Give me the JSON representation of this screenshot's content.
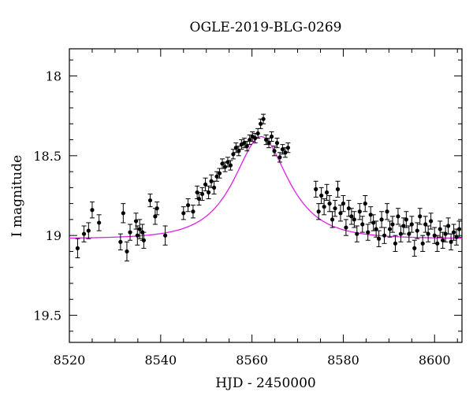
{
  "chart_data": {
    "type": "scatter",
    "title": "OGLE-2019-BLG-0269",
    "xlabel": "HJD - 2450000",
    "ylabel": "I magnitude",
    "xlim": [
      8520,
      8606
    ],
    "ylim": [
      19.67,
      17.83
    ],
    "y_axis_inverted": true,
    "x_ticks": [
      8520,
      8540,
      8560,
      8580,
      8600
    ],
    "x_tick_labels": [
      "8520",
      "8540",
      "8560",
      "8580",
      "8600"
    ],
    "y_ticks": [
      18,
      18.5,
      19,
      19.5
    ],
    "y_tick_labels": [
      "18",
      "18.5",
      "19",
      "19.5"
    ],
    "grid": false,
    "colors": {
      "points": "#000000",
      "model": "#e020e0",
      "frame": "#000000"
    },
    "model": {
      "name": "",
      "type": "microlensing",
      "t0": 8562.0,
      "baseline_mag": 19.02,
      "peak_mag": 18.38,
      "tE": 9.0
    },
    "series": [
      {
        "type": "errorbar-scatter",
        "x": [
          8521.8,
          8523.2,
          8524.2,
          8525.0,
          8526.5,
          8531.2,
          8531.8,
          8532.6,
          8533.3,
          8534.6,
          8534.9,
          8535.4,
          8536.0,
          8536.3,
          8537.7,
          8538.8,
          8539.2,
          8541.0,
          8545.0,
          8546.0,
          8547.1,
          8548.0,
          8548.4,
          8549.1,
          8549.8,
          8550.5,
          8551.1,
          8551.7,
          8552.3,
          8552.9,
          8553.5,
          8554.1,
          8554.7,
          8555.3,
          8555.9,
          8556.5,
          8557.1,
          8557.7,
          8558.3,
          8558.9,
          8559.5,
          8560.1,
          8560.7,
          8561.3,
          8561.9,
          8562.5,
          8563.1,
          8563.7,
          8564.3,
          8564.9,
          8565.5,
          8566.1,
          8566.7,
          8567.3,
          8567.9,
          8574.0,
          8574.6,
          8575.2,
          8575.8,
          8576.4,
          8577.0,
          8577.6,
          8578.2,
          8578.8,
          8579.4,
          8580.0,
          8580.6,
          8581.2,
          8581.8,
          8582.4,
          8583.0,
          8583.6,
          8584.2,
          8584.8,
          8585.4,
          8586.0,
          8586.6,
          8587.2,
          8587.8,
          8588.4,
          8589.0,
          8589.6,
          8590.2,
          8590.8,
          8591.4,
          8592.0,
          8592.6,
          8593.2,
          8593.8,
          8594.4,
          8595.0,
          8595.6,
          8596.2,
          8596.8,
          8597.4,
          8598.0,
          8598.6,
          8599.2,
          8600.0,
          8600.6,
          8601.2,
          8601.8,
          8602.4,
          8603.0,
          8603.6,
          8604.2,
          8604.8,
          8605.4
        ],
        "y": [
          19.08,
          18.99,
          18.97,
          18.84,
          18.92,
          19.04,
          18.86,
          19.1,
          18.98,
          18.91,
          19.0,
          18.96,
          18.98,
          19.03,
          18.78,
          18.88,
          18.83,
          19.0,
          18.86,
          18.81,
          18.85,
          18.73,
          18.77,
          18.74,
          18.68,
          18.73,
          18.66,
          18.7,
          18.63,
          18.61,
          18.55,
          18.57,
          18.54,
          18.56,
          18.49,
          18.45,
          18.47,
          18.43,
          18.42,
          18.44,
          18.4,
          18.38,
          18.39,
          18.36,
          18.3,
          18.27,
          18.4,
          18.42,
          18.38,
          18.47,
          18.42,
          18.51,
          18.46,
          18.48,
          18.45,
          18.71,
          18.85,
          18.75,
          18.82,
          18.73,
          18.8,
          18.9,
          18.83,
          18.71,
          18.86,
          18.8,
          18.95,
          18.83,
          18.88,
          18.9,
          18.99,
          18.85,
          18.93,
          18.8,
          18.98,
          18.87,
          18.92,
          18.96,
          19.02,
          18.9,
          19.0,
          18.85,
          18.96,
          18.93,
          19.05,
          18.88,
          18.99,
          18.94,
          18.9,
          18.99,
          18.93,
          19.08,
          18.97,
          18.88,
          19.05,
          18.93,
          18.99,
          18.91,
          19.0,
          19.05,
          18.96,
          19.03,
          18.99,
          18.94,
          19.04,
          18.98,
          19.01,
          18.96
        ],
        "err": [
          0.06,
          0.05,
          0.05,
          0.05,
          0.05,
          0.05,
          0.06,
          0.06,
          0.05,
          0.05,
          0.06,
          0.06,
          0.05,
          0.05,
          0.04,
          0.05,
          0.04,
          0.06,
          0.04,
          0.04,
          0.04,
          0.04,
          0.04,
          0.04,
          0.04,
          0.04,
          0.04,
          0.04,
          0.03,
          0.03,
          0.03,
          0.03,
          0.03,
          0.03,
          0.03,
          0.03,
          0.03,
          0.03,
          0.03,
          0.03,
          0.03,
          0.03,
          0.03,
          0.03,
          0.03,
          0.03,
          0.03,
          0.03,
          0.03,
          0.03,
          0.03,
          0.03,
          0.03,
          0.03,
          0.03,
          0.05,
          0.05,
          0.05,
          0.05,
          0.05,
          0.05,
          0.05,
          0.05,
          0.05,
          0.05,
          0.05,
          0.05,
          0.05,
          0.05,
          0.05,
          0.05,
          0.05,
          0.05,
          0.05,
          0.05,
          0.05,
          0.05,
          0.05,
          0.05,
          0.05,
          0.05,
          0.05,
          0.05,
          0.05,
          0.05,
          0.05,
          0.05,
          0.05,
          0.05,
          0.05,
          0.05,
          0.05,
          0.05,
          0.05,
          0.05,
          0.05,
          0.05,
          0.05,
          0.05,
          0.05,
          0.05,
          0.05,
          0.05,
          0.05,
          0.05,
          0.05,
          0.05,
          0.05
        ]
      }
    ]
  }
}
